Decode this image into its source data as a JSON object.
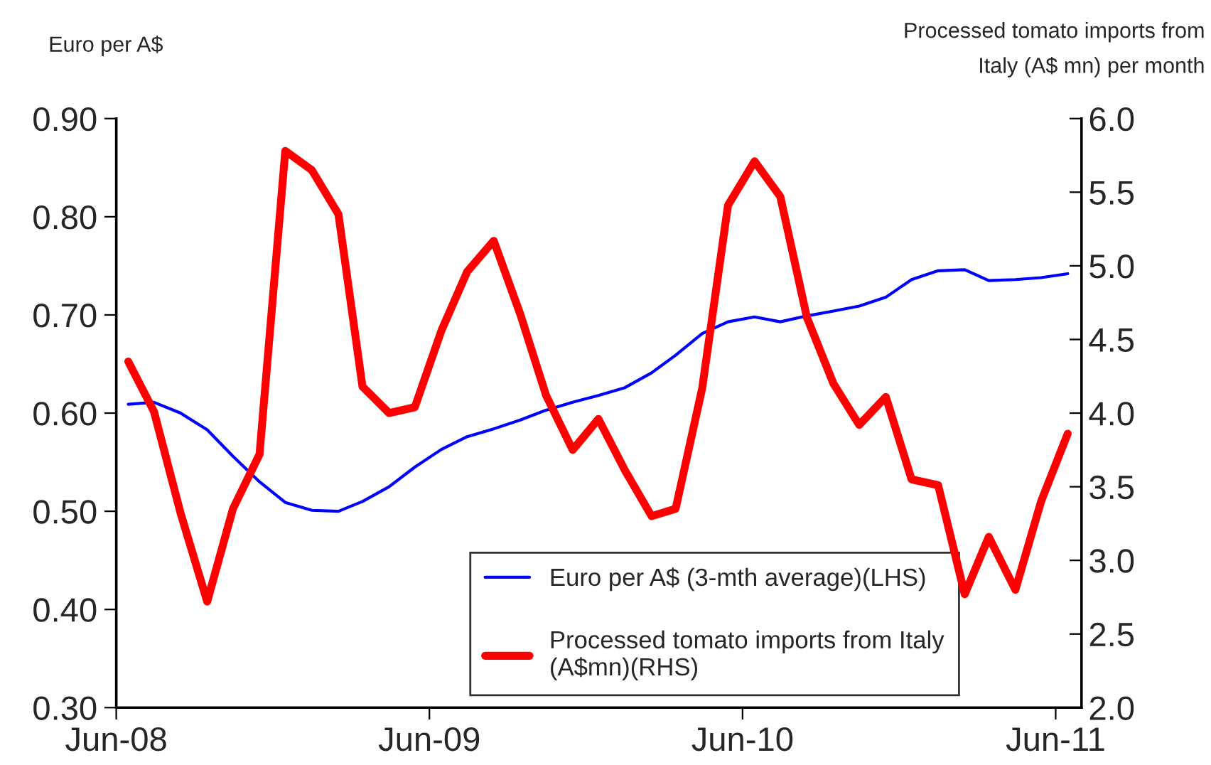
{
  "chart_data": {
    "type": "line",
    "ylabel": "Euro per A$",
    "y2label": "Processed tomato imports from\nItaly (A$ mn) per month",
    "x": [
      "2008-06-15",
      "2008-07-15",
      "2008-08-15",
      "2008-09-15",
      "2008-10-15",
      "2008-11-15",
      "2008-12-15",
      "2009-01-15",
      "2009-02-15",
      "2009-03-15",
      "2009-04-15",
      "2009-05-15",
      "2009-06-15",
      "2009-07-15",
      "2009-08-15",
      "2009-09-15",
      "2009-10-15",
      "2009-11-15",
      "2009-12-15",
      "2010-01-15",
      "2010-02-15",
      "2010-03-15",
      "2010-04-15",
      "2010-05-15",
      "2010-06-15",
      "2010-07-15",
      "2010-08-15",
      "2010-09-15",
      "2010-10-15",
      "2010-11-15",
      "2010-12-15",
      "2011-01-15",
      "2011-02-15",
      "2011-03-15",
      "2011-04-15",
      "2011-05-15",
      "2011-06-15"
    ],
    "series": [
      {
        "name": "Euro per A$ (3-mth average)(LHS)",
        "color": "#0000ff",
        "axis": "y",
        "values": [
          0.609,
          0.611,
          0.6,
          0.583,
          0.556,
          0.53,
          0.509,
          0.501,
          0.5,
          0.51,
          0.525,
          0.545,
          0.563,
          0.576,
          0.584,
          0.593,
          0.603,
          0.611,
          0.618,
          0.626,
          0.641,
          0.659,
          0.681,
          0.693,
          0.698,
          0.693,
          0.699,
          0.704,
          0.709,
          0.718,
          0.736,
          0.745,
          0.746,
          0.735,
          0.736,
          0.738,
          0.742
        ]
      },
      {
        "name": "Processed tomato imports from Italy\n(A$mn)(RHS)",
        "color": "#ff0000",
        "axis": "y2",
        "values": [
          4.35,
          4.01,
          3.32,
          2.72,
          3.35,
          3.72,
          5.78,
          5.65,
          5.35,
          4.18,
          4.0,
          4.04,
          4.56,
          4.96,
          5.17,
          4.67,
          4.12,
          3.75,
          3.96,
          3.61,
          3.3,
          3.35,
          4.17,
          5.41,
          5.71,
          5.47,
          4.65,
          4.2,
          3.92,
          4.11,
          3.55,
          3.51,
          2.77,
          3.16,
          2.8,
          3.4,
          3.86
        ]
      }
    ],
    "xlim": [
      "2008-06-01",
      "2011-07-01"
    ],
    "xticks": [
      {
        "value": "2008-06-01",
        "label": "Jun-08"
      },
      {
        "value": "2009-06-01",
        "label": "Jun-09"
      },
      {
        "value": "2010-06-01",
        "label": "Jun-10"
      },
      {
        "value": "2011-06-01",
        "label": "Jun-11"
      }
    ],
    "ylim": [
      0.3,
      0.9
    ],
    "yticks": [
      {
        "value": 0.3,
        "label": "0.30"
      },
      {
        "value": 0.4,
        "label": "0.40"
      },
      {
        "value": 0.5,
        "label": "0.50"
      },
      {
        "value": 0.6,
        "label": "0.60"
      },
      {
        "value": 0.7,
        "label": "0.70"
      },
      {
        "value": 0.8,
        "label": "0.80"
      },
      {
        "value": 0.9,
        "label": "0.90"
      }
    ],
    "y2lim": [
      2.0,
      6.0
    ],
    "y2ticks": [
      {
        "value": 2.0,
        "label": "2.0"
      },
      {
        "value": 2.5,
        "label": "2.5"
      },
      {
        "value": 3.0,
        "label": "3.0"
      },
      {
        "value": 3.5,
        "label": "3.5"
      },
      {
        "value": 4.0,
        "label": "4.0"
      },
      {
        "value": 4.5,
        "label": "4.5"
      },
      {
        "value": 5.0,
        "label": "5.0"
      },
      {
        "value": 5.5,
        "label": "5.5"
      },
      {
        "value": 6.0,
        "label": "6.0"
      }
    ],
    "grid": false,
    "legend": "bottom",
    "marker": "none",
    "line_style": "solid"
  }
}
